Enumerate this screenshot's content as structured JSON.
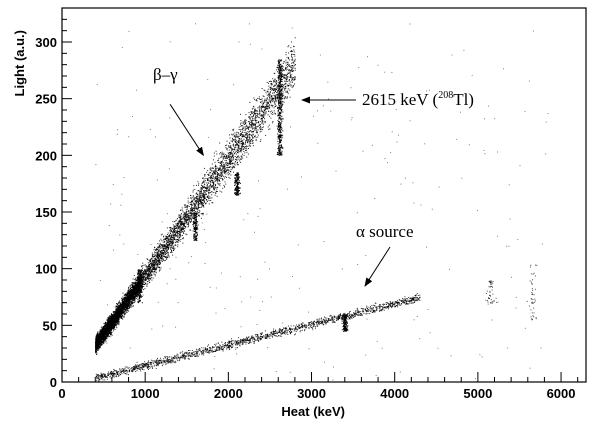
{
  "chart_data": {
    "type": "scatter",
    "xlabel": "Heat (keV)",
    "ylabel": "Light (a.u.)",
    "xlim": [
      0,
      6300
    ],
    "ylim": [
      0,
      330
    ],
    "x_ticks": [
      "0",
      "1000",
      "2000",
      "3000",
      "4000",
      "5000",
      "6000"
    ],
    "y_ticks": [
      "0",
      "50",
      "100",
      "150",
      "200",
      "250",
      "300"
    ],
    "grid": false,
    "legend": "none",
    "colors": {
      "points": "#000000",
      "axes": "#000000"
    },
    "bands": [
      {
        "label_text": "β–γ",
        "x_range": [
          400,
          2800
        ],
        "y_at_x_start": 33,
        "y_at_x_end": 280
      },
      {
        "label_text": "α source",
        "x_range": [
          400,
          4300
        ],
        "y_at_x_start": 4,
        "y_at_x_end": 75
      }
    ],
    "lines": [
      {
        "x": 2615,
        "y_range": [
          200,
          285
        ]
      },
      {
        "x": 2100,
        "y_range": [
          165,
          185
        ]
      },
      {
        "x": 1600,
        "y_range": [
          125,
          150
        ]
      },
      {
        "x": 930,
        "y_range": [
          70,
          100
        ]
      },
      {
        "x": 3400,
        "y_range": [
          45,
          60
        ]
      }
    ],
    "annotations": {
      "beta_gamma": {
        "text": "β–γ",
        "arrow_from": [
          1300,
          245
        ],
        "arrow_to": [
          1700,
          200
        ]
      },
      "tl_line": {
        "prefix": "2615 keV (",
        "sup": "208",
        "element": "Tl",
        "suffix": ")",
        "arrow_from": [
          3500,
          246
        ],
        "arrow_to": [
          2700,
          246
        ]
      },
      "alpha": {
        "text": "α source",
        "arrow_from": [
          3950,
          118
        ],
        "arrow_to": [
          3650,
          82
        ]
      }
    }
  }
}
